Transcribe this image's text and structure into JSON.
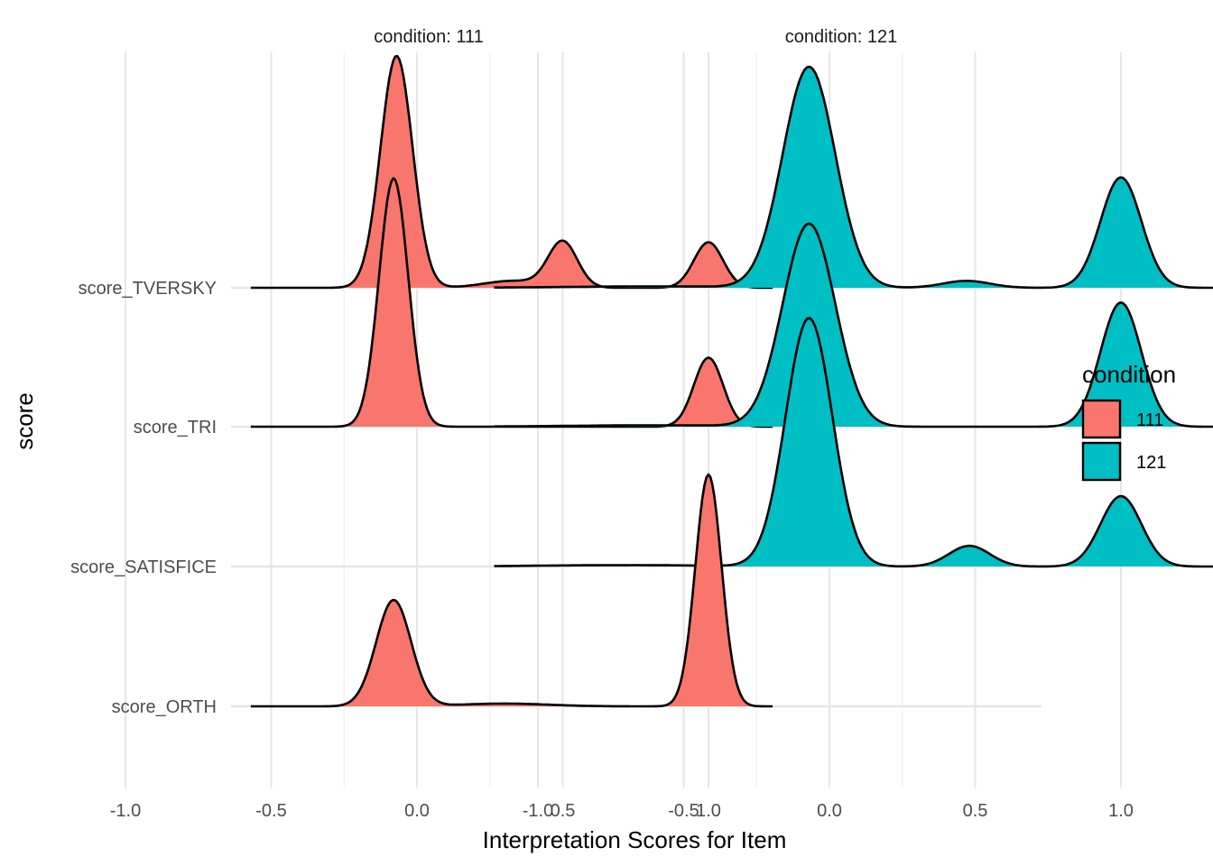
{
  "chart_data": {
    "type": "area",
    "subtype": "ridgeline density",
    "xlabel": "Interpretation Scores for Item",
    "ylabel": "score",
    "facet_prefix": "condition: ",
    "panels": [
      "111",
      "121"
    ],
    "xlim": [
      -1.25,
      1.45
    ],
    "x_ticks": [
      -1.0,
      -0.5,
      0.0,
      0.5,
      1.0
    ],
    "x_tick_labels": [
      "-1.0",
      "-0.5",
      "0.0",
      "0.5",
      "1.0"
    ],
    "y_categories": [
      "score_TVERSKY",
      "score_TRI",
      "score_SATISFICE",
      "score_ORTH"
    ],
    "grid": true,
    "legend": {
      "title": "condition",
      "placement": "right",
      "items": [
        {
          "label": "111",
          "color": "#F8766D"
        },
        {
          "label": "121",
          "color": "#00BFC4"
        }
      ]
    },
    "series": [
      {
        "panel": "111",
        "category": "score_TVERSKY",
        "x_range": [
          -0.57,
          1.22
        ],
        "peaks": [
          {
            "x": -0.07,
            "density": 1.68,
            "sd": 0.055
          },
          {
            "x": 0.5,
            "density": 0.33,
            "sd": 0.05
          },
          {
            "x": 1.0,
            "density": 0.33,
            "sd": 0.05
          },
          {
            "x": 0.33,
            "density": 0.05,
            "sd": 0.1
          }
        ]
      },
      {
        "panel": "111",
        "category": "score_TRI",
        "x_range": [
          -0.57,
          1.22
        ],
        "peaks": [
          {
            "x": -0.08,
            "density": 1.8,
            "sd": 0.05
          },
          {
            "x": 1.0,
            "density": 0.5,
            "sd": 0.05
          }
        ]
      },
      {
        "panel": "111",
        "category": "score_SATISFICE",
        "peaks": []
      },
      {
        "panel": "111",
        "category": "score_ORTH",
        "x_range": [
          -0.57,
          1.22
        ],
        "peaks": [
          {
            "x": -0.08,
            "density": 0.77,
            "sd": 0.06
          },
          {
            "x": 1.0,
            "density": 1.68,
            "sd": 0.045
          },
          {
            "x": 0.3,
            "density": 0.02,
            "sd": 0.15
          }
        ]
      },
      {
        "panel": "121",
        "category": "score_TVERSKY",
        "x_range": [
          -1.15,
          1.32
        ],
        "peaks": [
          {
            "x": -0.07,
            "density": 1.6,
            "sd": 0.09
          },
          {
            "x": 1.0,
            "density": 0.8,
            "sd": 0.07
          },
          {
            "x": 0.47,
            "density": 0.05,
            "sd": 0.08
          },
          {
            "x": -0.6,
            "density": 0.01,
            "sd": 0.3
          }
        ]
      },
      {
        "panel": "121",
        "category": "score_TRI",
        "x_range": [
          -1.15,
          1.32
        ],
        "peaks": [
          {
            "x": -0.07,
            "density": 1.47,
            "sd": 0.09
          },
          {
            "x": 1.0,
            "density": 0.9,
            "sd": 0.07
          },
          {
            "x": -0.6,
            "density": 0.01,
            "sd": 0.3
          }
        ]
      },
      {
        "panel": "121",
        "category": "score_SATISFICE",
        "x_range": [
          -1.15,
          1.32
        ],
        "peaks": [
          {
            "x": -0.07,
            "density": 1.8,
            "sd": 0.08
          },
          {
            "x": 1.0,
            "density": 0.51,
            "sd": 0.07
          },
          {
            "x": 0.48,
            "density": 0.15,
            "sd": 0.07
          },
          {
            "x": -0.7,
            "density": 0.01,
            "sd": 0.3
          }
        ]
      },
      {
        "panel": "121",
        "category": "score_ORTH",
        "peaks": []
      }
    ]
  }
}
